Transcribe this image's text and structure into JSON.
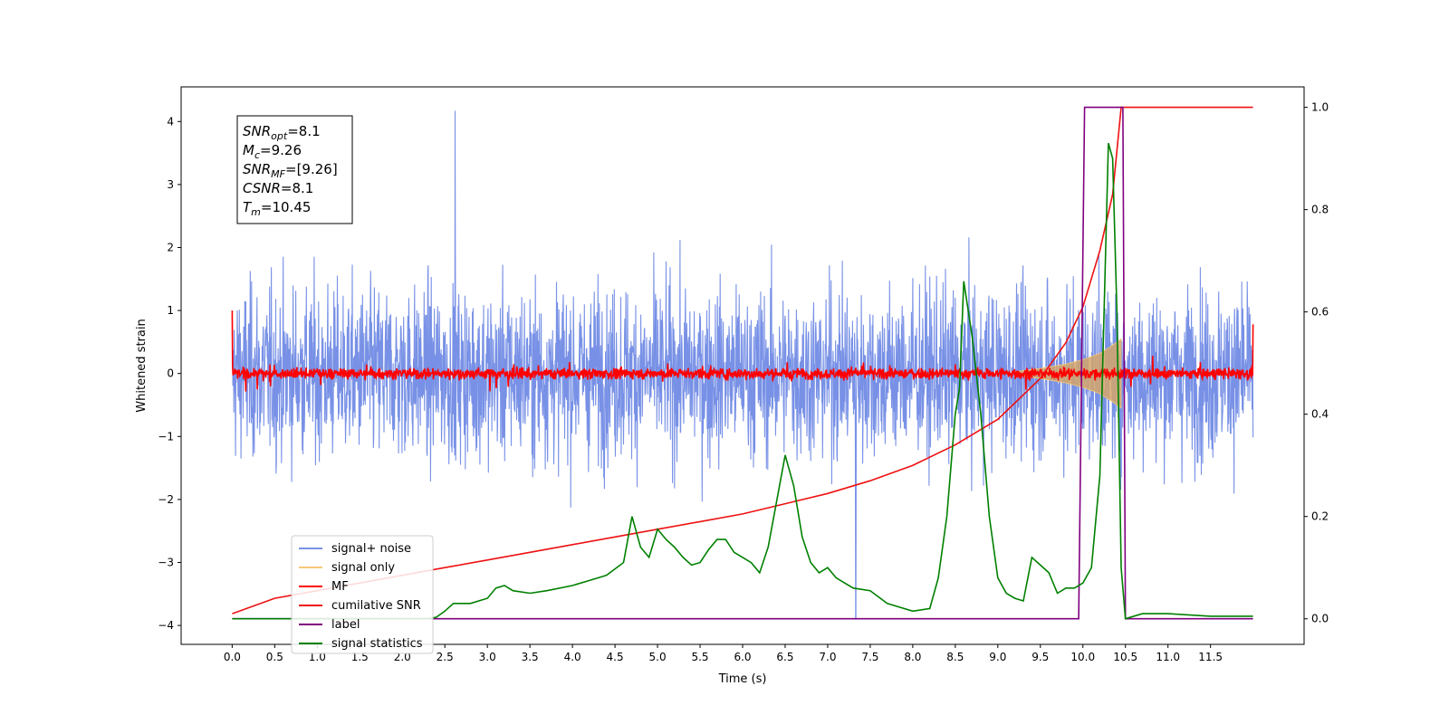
{
  "chart_data": {
    "type": "line",
    "xlabel": "Time (s)",
    "ylabel": "Whitened strain",
    "xlim": [
      -0.6,
      12.6
    ],
    "ylim": [
      -4.3,
      4.55
    ],
    "ylim_right": [
      -0.05,
      1.04
    ],
    "x_ticks": [
      "0.0",
      "0.5",
      "1.0",
      "1.5",
      "2.0",
      "2.5",
      "3.0",
      "3.5",
      "4.0",
      "4.5",
      "5.0",
      "5.5",
      "6.0",
      "6.5",
      "7.0",
      "7.5",
      "8.0",
      "8.5",
      "9.0",
      "9.5",
      "10.0",
      "10.5",
      "11.0",
      "11.5"
    ],
    "y_ticks_left": [
      "4",
      "3",
      "2",
      "1",
      "0",
      "−1",
      "−2",
      "−3",
      "−4"
    ],
    "y_ticks_right": [
      "1.0",
      "0.8",
      "0.6",
      "0.4",
      "0.2",
      "0.0"
    ],
    "grid": false,
    "legend_position": "lower-left",
    "annotation": {
      "lines": [
        {
          "base": "SNR",
          "sub": "opt",
          "value": "=8.1"
        },
        {
          "base": "M",
          "sub": "c",
          "value": "=9.26"
        },
        {
          "base": "SNR",
          "sub": "MF",
          "value": "=[9.26]"
        },
        {
          "base": "CSNR",
          "sub": "",
          "value": "=8.1"
        },
        {
          "base": "T",
          "sub": "m",
          "value": "=10.45"
        }
      ]
    },
    "series": [
      {
        "name": "signal+ noise",
        "color": "#7891e6",
        "axis": "left",
        "description_values": {
          "x_range": [
            0.0,
            12.0
          ],
          "typical_envelope": [
            -2.6,
            2.6
          ],
          "max": 4.17,
          "max_at": 2.62,
          "min": -3.9,
          "min_at": 7.33
        }
      },
      {
        "name": "signal only",
        "color": "#f5c87a",
        "axis": "left",
        "envelope": {
          "x": [
            9.2,
            9.5,
            9.8,
            10.0,
            10.2,
            10.35,
            10.45
          ],
          "amplitude": [
            0.03,
            0.08,
            0.15,
            0.22,
            0.32,
            0.45,
            0.55
          ]
        }
      },
      {
        "name": "MF",
        "color": "#ff0000",
        "axis": "left",
        "description_values": {
          "x_range": [
            0.0,
            12.0
          ],
          "typical_envelope": [
            -0.15,
            0.15
          ],
          "start": 1.0,
          "end": 0.78
        }
      },
      {
        "name": "cumilative SNR",
        "color": "#ee1111",
        "axis": "right",
        "x": [
          0.0,
          0.5,
          1.0,
          1.5,
          2.0,
          2.5,
          3.0,
          3.5,
          4.0,
          4.5,
          5.0,
          5.5,
          6.0,
          6.5,
          7.0,
          7.5,
          8.0,
          8.5,
          9.0,
          9.5,
          9.8,
          10.0,
          10.2,
          10.35,
          10.45,
          10.5,
          11.0,
          11.5,
          12.0
        ],
        "y": [
          0.01,
          0.04,
          0.055,
          0.07,
          0.085,
          0.1,
          0.115,
          0.13,
          0.145,
          0.16,
          0.175,
          0.19,
          0.205,
          0.225,
          0.245,
          0.27,
          0.3,
          0.34,
          0.39,
          0.47,
          0.54,
          0.61,
          0.72,
          0.83,
          1.0,
          1.0,
          1.0,
          1.0,
          1.0
        ]
      },
      {
        "name": "label",
        "color": "#800080",
        "axis": "right",
        "x": [
          0.0,
          9.95,
          10.02,
          10.47,
          10.5,
          12.0
        ],
        "y": [
          0.0,
          0.0,
          1.0,
          1.0,
          0.0,
          0.0
        ]
      },
      {
        "name": "signal statistics",
        "color": "#008000",
        "axis": "right",
        "x": [
          0.0,
          2.3,
          2.4,
          2.5,
          2.6,
          2.8,
          3.0,
          3.1,
          3.2,
          3.3,
          3.5,
          3.7,
          4.0,
          4.2,
          4.4,
          4.6,
          4.7,
          4.8,
          4.9,
          5.0,
          5.1,
          5.2,
          5.3,
          5.4,
          5.5,
          5.6,
          5.7,
          5.8,
          5.9,
          6.0,
          6.1,
          6.2,
          6.3,
          6.4,
          6.5,
          6.6,
          6.7,
          6.8,
          6.9,
          7.0,
          7.1,
          7.2,
          7.3,
          7.5,
          7.7,
          7.8,
          8.0,
          8.2,
          8.3,
          8.4,
          8.5,
          8.55,
          8.6,
          8.7,
          8.8,
          8.9,
          9.0,
          9.1,
          9.2,
          9.3,
          9.4,
          9.5,
          9.6,
          9.7,
          9.8,
          9.9,
          10.0,
          10.1,
          10.2,
          10.3,
          10.35,
          10.4,
          10.45,
          10.5,
          10.7,
          11.0,
          11.5,
          12.0
        ],
        "y": [
          0.0,
          0.0,
          0.003,
          0.015,
          0.03,
          0.03,
          0.04,
          0.06,
          0.065,
          0.055,
          0.05,
          0.055,
          0.065,
          0.075,
          0.085,
          0.11,
          0.2,
          0.14,
          0.12,
          0.175,
          0.155,
          0.14,
          0.12,
          0.105,
          0.11,
          0.135,
          0.155,
          0.155,
          0.13,
          0.12,
          0.11,
          0.09,
          0.14,
          0.23,
          0.32,
          0.26,
          0.16,
          0.11,
          0.09,
          0.1,
          0.08,
          0.07,
          0.06,
          0.055,
          0.03,
          0.025,
          0.015,
          0.02,
          0.08,
          0.2,
          0.4,
          0.45,
          0.66,
          0.55,
          0.4,
          0.2,
          0.08,
          0.05,
          0.04,
          0.035,
          0.12,
          0.105,
          0.09,
          0.05,
          0.06,
          0.06,
          0.07,
          0.1,
          0.28,
          0.93,
          0.9,
          0.6,
          0.1,
          0.0,
          0.01,
          0.01,
          0.005,
          0.005
        ]
      }
    ]
  }
}
